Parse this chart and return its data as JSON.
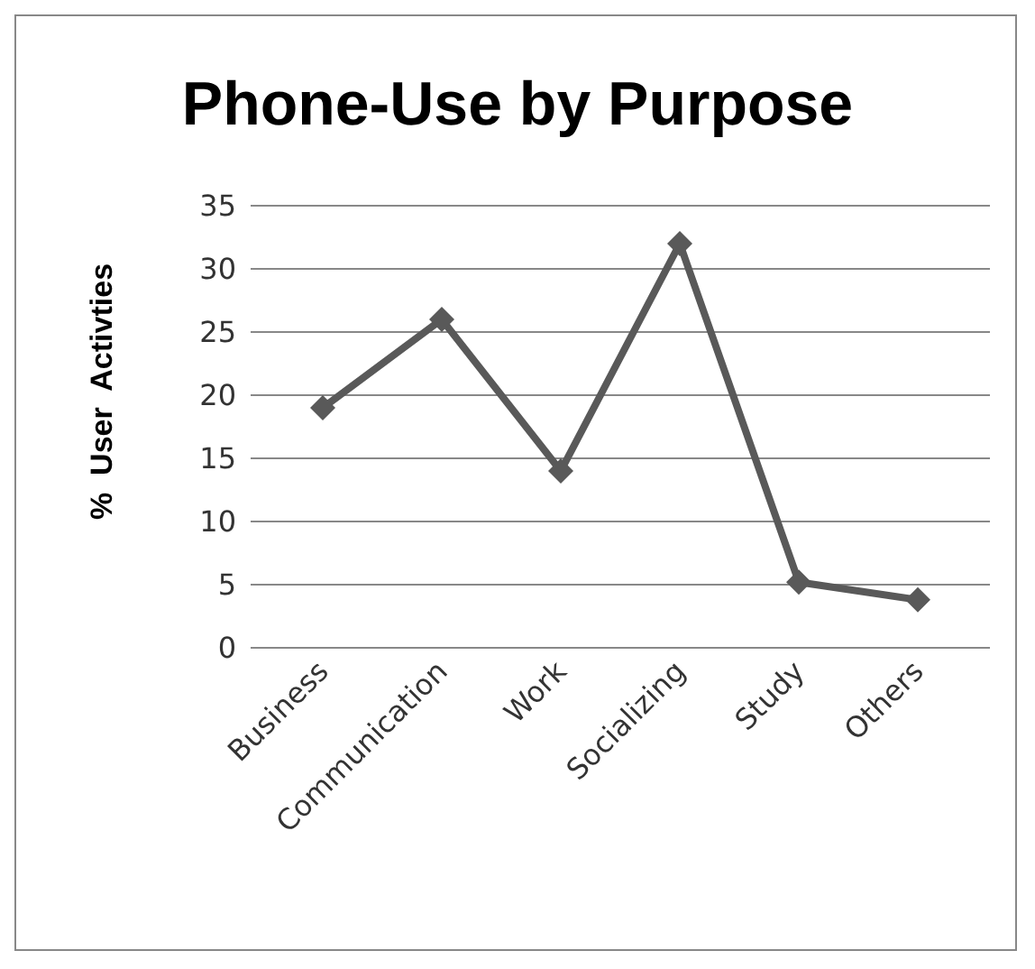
{
  "chart_data": {
    "type": "line",
    "title": "Phone-Use by Purpose",
    "ylabel": "%  User  Activties",
    "categories": [
      "Business",
      "Communication",
      "Work",
      "Socializing",
      "Study",
      "Others"
    ],
    "series": [
      {
        "color": "#595959",
        "values": [
          19,
          26,
          14,
          32,
          5.2,
          3.8
        ]
      }
    ],
    "ylim": [
      0,
      35
    ],
    "yticks": [
      0,
      5,
      10,
      15,
      20,
      25,
      30,
      35
    ],
    "grid": "y",
    "marker": "diamond",
    "line_style": "solid"
  }
}
